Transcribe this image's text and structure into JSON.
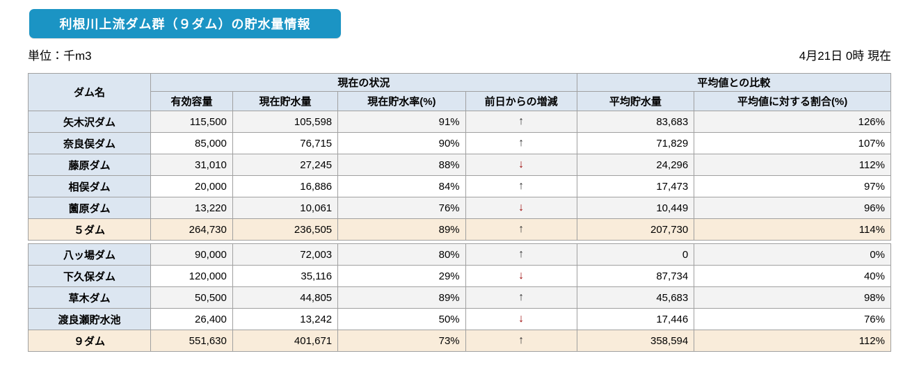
{
  "page": {
    "title": "利根川上流ダム群（９ダム）の貯水量情報",
    "unit_label": "単位：千m3",
    "datetime_label": "4月21日 0時 現在"
  },
  "colors": {
    "title_bg": "#1b94c4",
    "header_bg": "#dce6f1",
    "alt_row_bg": "#f3f3f3",
    "total_row_bg": "#f9ecda",
    "up_arrow": "#333333",
    "down_arrow": "#990000",
    "border": "#a0a0a0"
  },
  "glyphs": {
    "up": "↑",
    "down": "↓"
  },
  "table": {
    "columns": {
      "dam_name": "ダム名",
      "current_group": "現在の状況",
      "average_group": "平均値との比較",
      "effective_capacity": "有効容量",
      "current_storage": "現在貯水量",
      "current_rate": "現在貯水率(%)",
      "change_from_prev_day": "前日からの増減",
      "average_storage": "平均貯水量",
      "ratio_to_average": "平均値に対する割合(%)"
    },
    "sections": [
      {
        "rows": [
          {
            "name": "矢木沢ダム",
            "effective_capacity": "115,500",
            "current_storage": "105,598",
            "current_rate": "91%",
            "change": "up",
            "average_storage": "83,683",
            "ratio": "126%",
            "is_total": false
          },
          {
            "name": "奈良俣ダム",
            "effective_capacity": "85,000",
            "current_storage": "76,715",
            "current_rate": "90%",
            "change": "up",
            "average_storage": "71,829",
            "ratio": "107%",
            "is_total": false
          },
          {
            "name": "藤原ダム",
            "effective_capacity": "31,010",
            "current_storage": "27,245",
            "current_rate": "88%",
            "change": "down",
            "average_storage": "24,296",
            "ratio": "112%",
            "is_total": false
          },
          {
            "name": "相俣ダム",
            "effective_capacity": "20,000",
            "current_storage": "16,886",
            "current_rate": "84%",
            "change": "up",
            "average_storage": "17,473",
            "ratio": "97%",
            "is_total": false
          },
          {
            "name": "薗原ダム",
            "effective_capacity": "13,220",
            "current_storage": "10,061",
            "current_rate": "76%",
            "change": "down",
            "average_storage": "10,449",
            "ratio": "96%",
            "is_total": false
          },
          {
            "name": "５ダム",
            "effective_capacity": "264,730",
            "current_storage": "236,505",
            "current_rate": "89%",
            "change": "up",
            "average_storage": "207,730",
            "ratio": "114%",
            "is_total": true
          }
        ]
      },
      {
        "rows": [
          {
            "name": "八ッ場ダム",
            "effective_capacity": "90,000",
            "current_storage": "72,003",
            "current_rate": "80%",
            "change": "up",
            "average_storage": "0",
            "ratio": "0%",
            "is_total": false
          },
          {
            "name": "下久保ダム",
            "effective_capacity": "120,000",
            "current_storage": "35,116",
            "current_rate": "29%",
            "change": "down",
            "average_storage": "87,734",
            "ratio": "40%",
            "is_total": false
          },
          {
            "name": "草木ダム",
            "effective_capacity": "50,500",
            "current_storage": "44,805",
            "current_rate": "89%",
            "change": "up",
            "average_storage": "45,683",
            "ratio": "98%",
            "is_total": false
          },
          {
            "name": "渡良瀬貯水池",
            "effective_capacity": "26,400",
            "current_storage": "13,242",
            "current_rate": "50%",
            "change": "down",
            "average_storage": "17,446",
            "ratio": "76%",
            "is_total": false
          },
          {
            "name": "９ダム",
            "effective_capacity": "551,630",
            "current_storage": "401,671",
            "current_rate": "73%",
            "change": "up",
            "average_storage": "358,594",
            "ratio": "112%",
            "is_total": true
          }
        ]
      }
    ]
  }
}
